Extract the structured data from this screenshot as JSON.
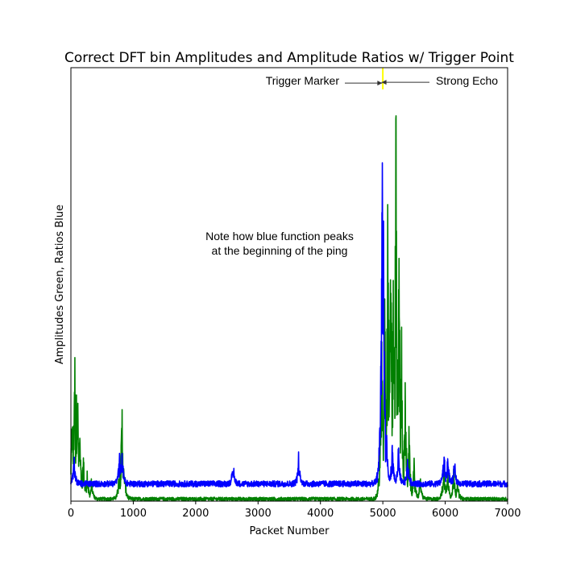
{
  "chart_data": {
    "type": "line",
    "title": "Correct DFT bin Amplitudes and Amplitude Ratios w/ Trigger Point",
    "xlabel": "Packet Number",
    "ylabel": "Amplitudes Green, Ratios Blue",
    "xlim": [
      0,
      7000
    ],
    "ylim": [
      0,
      1
    ],
    "xticks": [
      0,
      1000,
      2000,
      3000,
      4000,
      5000,
      6000,
      7000
    ],
    "xtick_labels": [
      "0",
      "1000",
      "2000",
      "3000",
      "4000",
      "5000",
      "6000",
      "7000"
    ],
    "yticks_shown": false,
    "grid": false,
    "series": [
      {
        "role": "Amplitudes",
        "color": "#008000",
        "baseline": 0.005,
        "noise": 0.004,
        "peaks": [
          {
            "x": 20,
            "y": 0.25
          },
          {
            "x": 60,
            "y": 0.42
          },
          {
            "x": 100,
            "y": 0.41
          },
          {
            "x": 140,
            "y": 0.2
          },
          {
            "x": 200,
            "y": 0.12
          },
          {
            "x": 260,
            "y": 0.08
          },
          {
            "x": 330,
            "y": 0.05
          },
          {
            "x": 780,
            "y": 0.1
          },
          {
            "x": 820,
            "y": 0.25
          },
          {
            "x": 860,
            "y": 0.08
          },
          {
            "x": 4980,
            "y": 0.45
          },
          {
            "x": 5030,
            "y": 0.55
          },
          {
            "x": 5080,
            "y": 0.8
          },
          {
            "x": 5130,
            "y": 0.78
          },
          {
            "x": 5170,
            "y": 0.62
          },
          {
            "x": 5210,
            "y": 1.0
          },
          {
            "x": 5260,
            "y": 0.72
          },
          {
            "x": 5300,
            "y": 0.45
          },
          {
            "x": 5360,
            "y": 0.3
          },
          {
            "x": 5420,
            "y": 0.18
          },
          {
            "x": 5500,
            "y": 0.1
          },
          {
            "x": 5600,
            "y": 0.06
          },
          {
            "x": 5980,
            "y": 0.1
          },
          {
            "x": 6040,
            "y": 0.08
          },
          {
            "x": 6140,
            "y": 0.09
          },
          {
            "x": 6200,
            "y": 0.05
          }
        ]
      },
      {
        "role": "Ratios",
        "color": "#0000ff",
        "baseline": 0.04,
        "noise": 0.007,
        "peaks": [
          {
            "x": 50,
            "y": 0.07
          },
          {
            "x": 780,
            "y": 0.08
          },
          {
            "x": 820,
            "y": 0.09
          },
          {
            "x": 2600,
            "y": 0.055
          },
          {
            "x": 3650,
            "y": 0.07
          },
          {
            "x": 4990,
            "y": 0.95
          },
          {
            "x": 5010,
            "y": 0.65
          },
          {
            "x": 5060,
            "y": 0.12
          },
          {
            "x": 5150,
            "y": 0.1
          },
          {
            "x": 5250,
            "y": 0.09
          },
          {
            "x": 5400,
            "y": 0.065
          },
          {
            "x": 5980,
            "y": 0.085
          },
          {
            "x": 6040,
            "y": 0.075
          },
          {
            "x": 6150,
            "y": 0.06
          }
        ]
      }
    ],
    "trigger": {
      "x": 5000,
      "color": "#ffff00"
    },
    "annotations": [
      {
        "text": "Trigger Marker",
        "arrow_to_x": 4990,
        "arrow_to_y": 0.97,
        "side": "left"
      },
      {
        "text": "Strong Echo",
        "arrow_to_x": 5290,
        "arrow_to_y": 0.97,
        "side": "right"
      },
      {
        "text": "Note how blue function peaks",
        "line": 1
      },
      {
        "text": "at the beginning of the ping",
        "line": 2
      }
    ]
  }
}
